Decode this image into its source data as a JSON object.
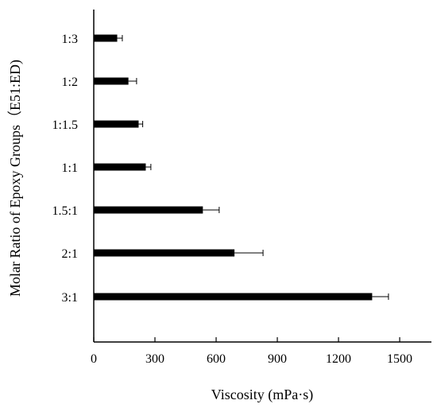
{
  "chart_data": {
    "type": "bar",
    "orientation": "horizontal",
    "xlabel": "Viscosity (mPa·s)",
    "ylabel": "Molar Ratio of Epoxy Groups（E51:ED)",
    "categories": [
      "3:1",
      "2:1",
      "1.5:1",
      "1:1",
      "1:1.5",
      "1:2",
      "1:3"
    ],
    "values": [
      1365,
      690,
      535,
      255,
      220,
      170,
      115
    ],
    "errors": [
      80,
      140,
      80,
      25,
      20,
      40,
      25
    ],
    "xlim": [
      0,
      1650
    ],
    "xticks": [
      0,
      300,
      600,
      900,
      1200,
      1500
    ],
    "grid": false,
    "bar_color": "#000000"
  }
}
